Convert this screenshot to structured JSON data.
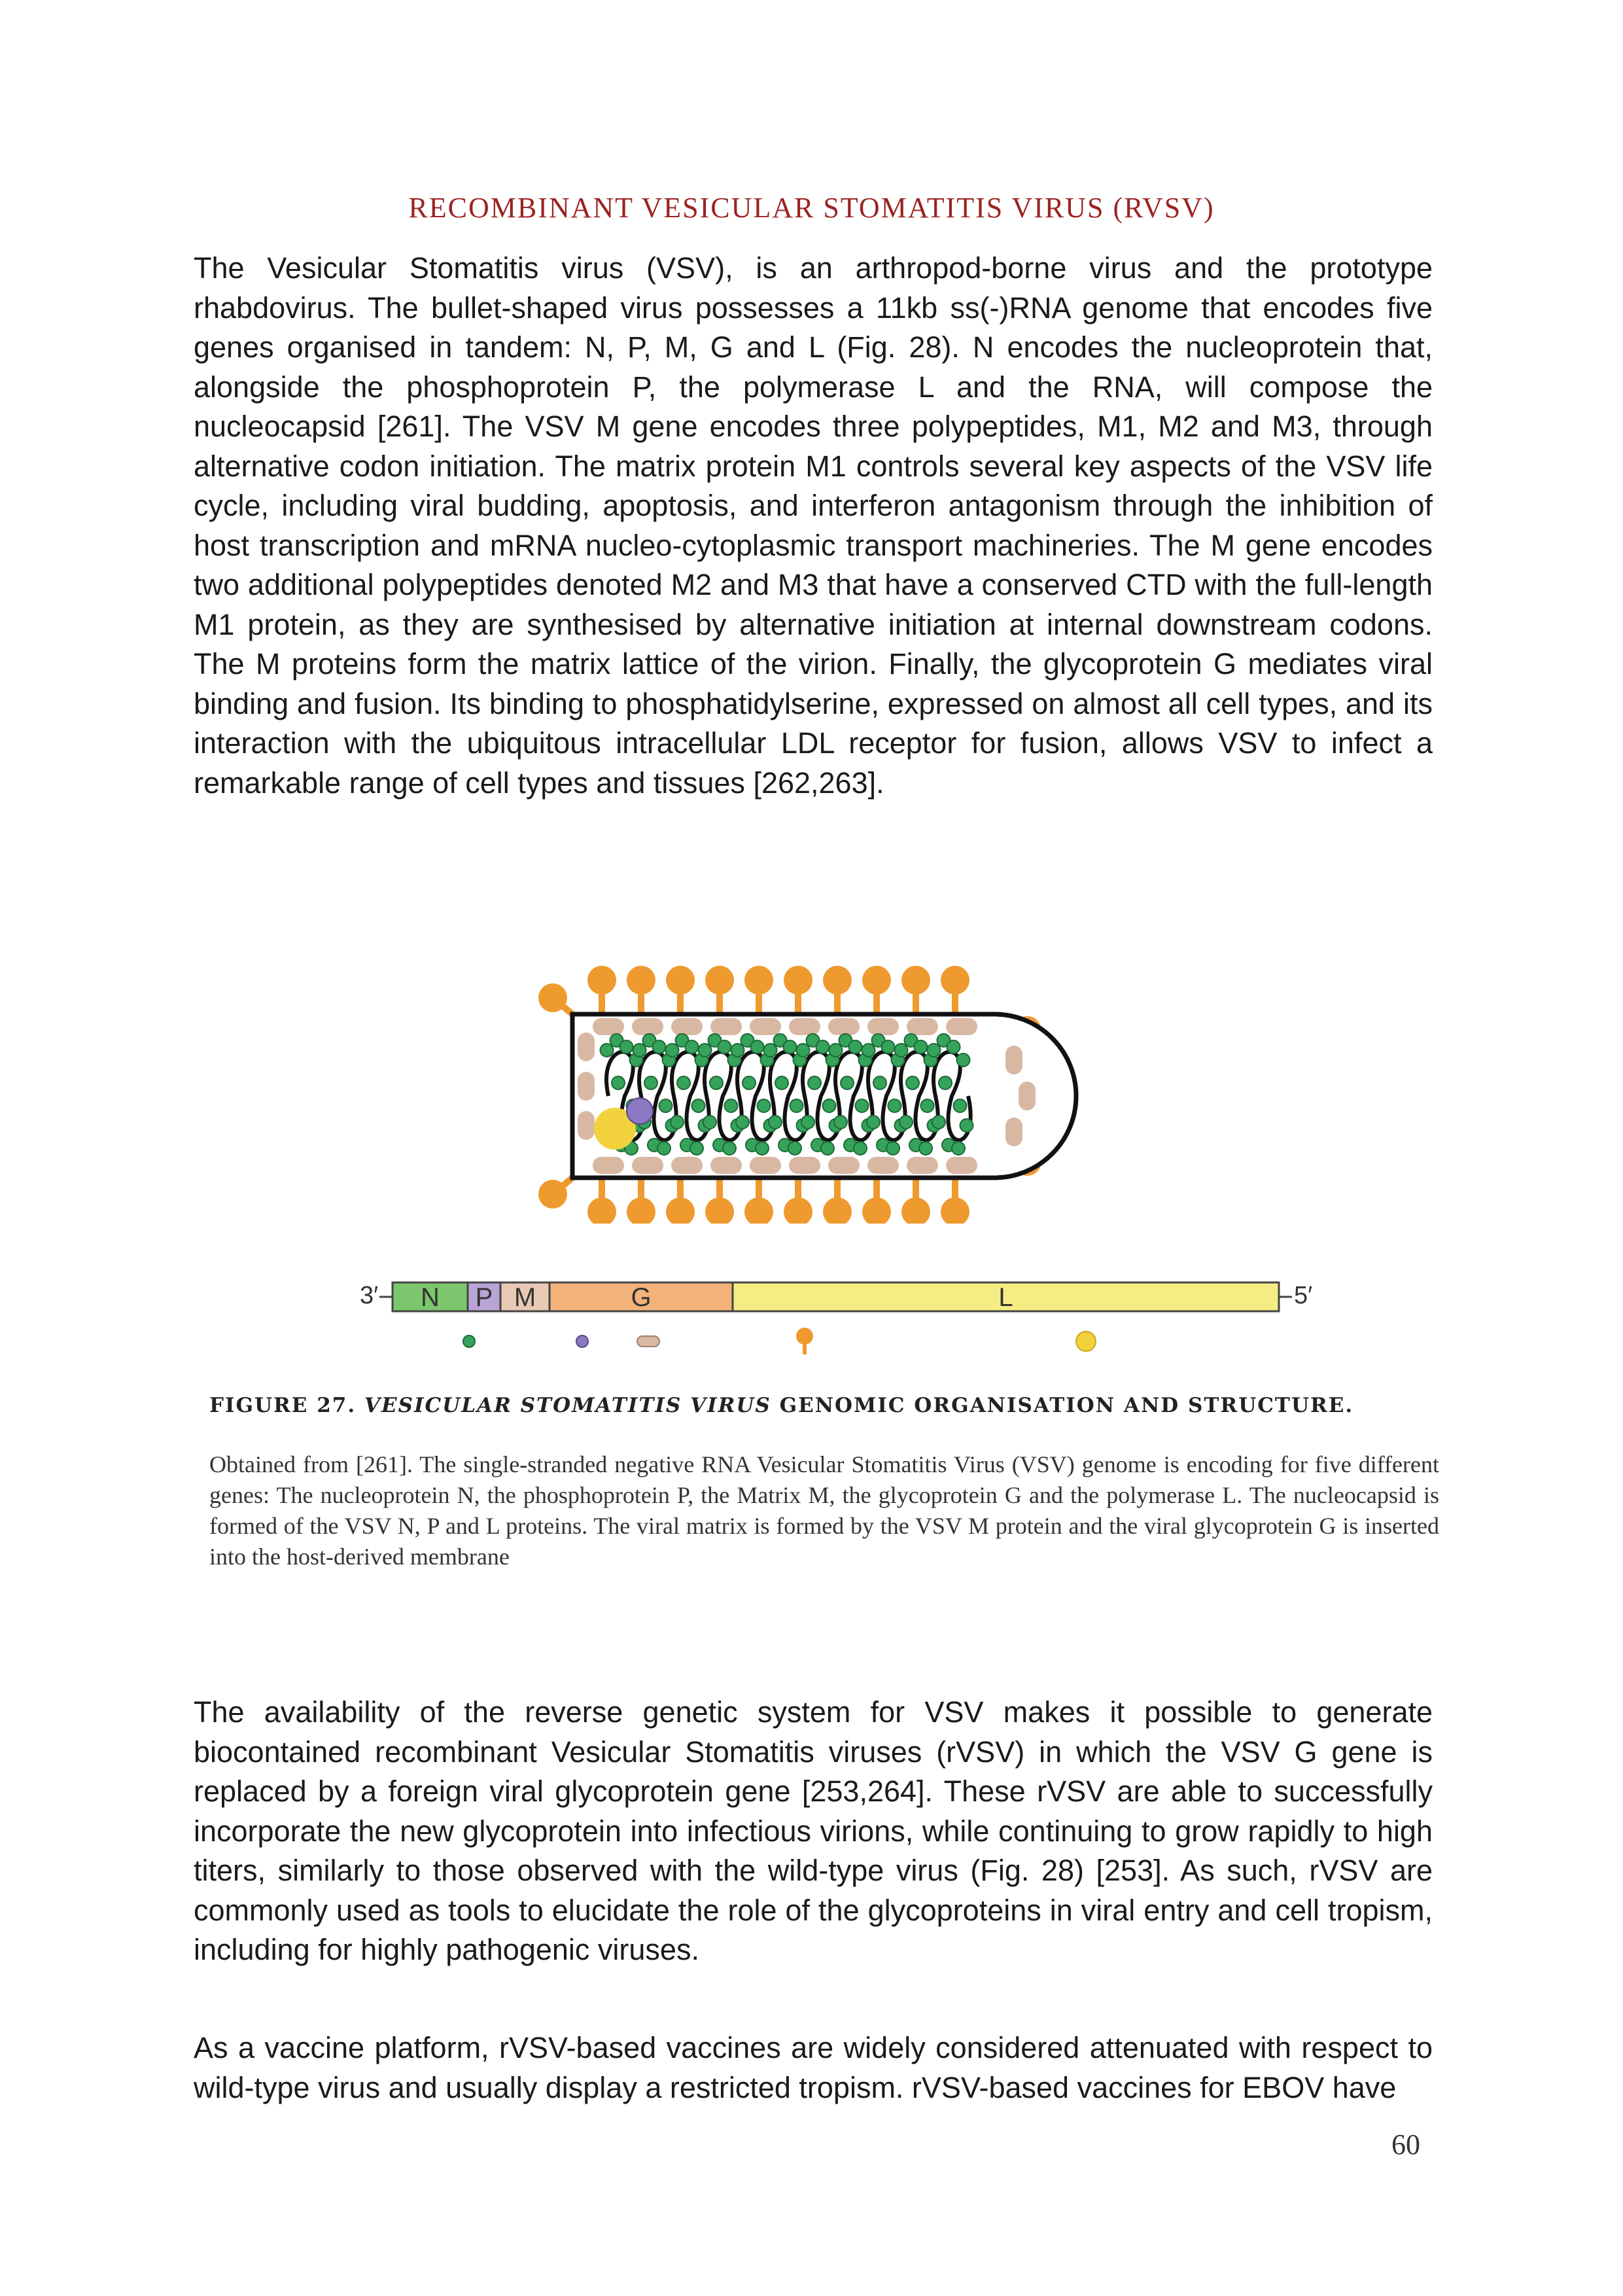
{
  "heading": "RECOMBINANT VESICULAR STOMATITIS VIRUS (RVSV)",
  "paragraphs": {
    "p1": "The Vesicular Stomatitis virus (VSV), is an arthropod-borne virus and the prototype rhabdovirus. The bullet-shaped virus possesses a 11kb ss(-)RNA genome that encodes five genes organised in tandem: N, P, M, G and L (Fig. 28). N encodes the nucleoprotein that, alongside the phosphoprotein P, the polymerase L and the RNA, will compose the nucleocapsid [261]. The VSV M gene encodes three polypeptides, M1, M2 and M3, through alternative codon initiation. The matrix protein M1 controls several key aspects of the VSV life cycle, including viral budding, apoptosis, and interferon antagonism through the inhibition of host transcription and mRNA nucleo-cytoplasmic transport machineries. The M gene encodes two additional polypeptides denoted M2 and M3 that have a conserved CTD with the full-length M1 protein, as they are synthesised by alternative initiation at internal downstream codons. The M proteins form the matrix lattice of the virion. Finally, the glycoprotein G mediates viral binding and fusion. Its binding to phosphatidylserine, expressed on almost all cell types, and its interaction with the ubiquitous intracellular LDL receptor for fusion, allows VSV to infect a remarkable range of cell types and tissues [262,263].",
    "p2": "The availability of the reverse genetic system for VSV makes it possible to generate biocontained recombinant Vesicular Stomatitis viruses (rVSV) in which the VSV G gene is replaced by a foreign viral glycoprotein gene [253,264]. These rVSV are able to successfully incorporate the new glycoprotein into infectious virions, while continuing to grow rapidly to high titers, similarly to those observed with the wild-type virus (Fig. 28) [253]. As such, rVSV are commonly used as tools to elucidate the role of the glycoproteins in viral entry and cell tropism, including for highly pathogenic viruses.",
    "p3": "As a vaccine platform, rVSV-based vaccines are widely considered attenuated with respect to wild-type virus and usually display a restricted tropism. rVSV-based vaccines for EBOV have"
  },
  "figure": {
    "label": "FIGURE 27.",
    "title_italic": "VESICULAR STOMATITIS VIRUS",
    "title_rest": "GENOMIC ORGANISATION AND STRUCTURE.",
    "caption": "Obtained from [261]. The single-stranded negative RNA Vesicular Stomatitis Virus (VSV) genome is encoding for five different genes: The nucleoprotein N, the phosphoprotein P, the Matrix M, the glycoprotein G and the polymerase L. The nucleocapsid is formed of the VSV N, P and L proteins. The viral matrix is formed by the VSV M protein and the viral glycoprotein G is inserted into the host-derived membrane",
    "genome": {
      "end_left": "3′",
      "end_right": "5′",
      "genes": [
        "N",
        "P",
        "M",
        "G",
        "L"
      ]
    },
    "colors": {
      "N": "#7cc66e",
      "P": "#b9a4d6",
      "M": "#e8c9b4",
      "G": "#f2b27a",
      "L": "#f6ec84",
      "glycoprotein": "#ef9a2e",
      "matrix": "#d9b8a3",
      "nucleoprotein": "#35a35a",
      "polymerase": "#f2d23c",
      "phosphoprotein": "#8d78c4"
    }
  },
  "page_number": "60"
}
